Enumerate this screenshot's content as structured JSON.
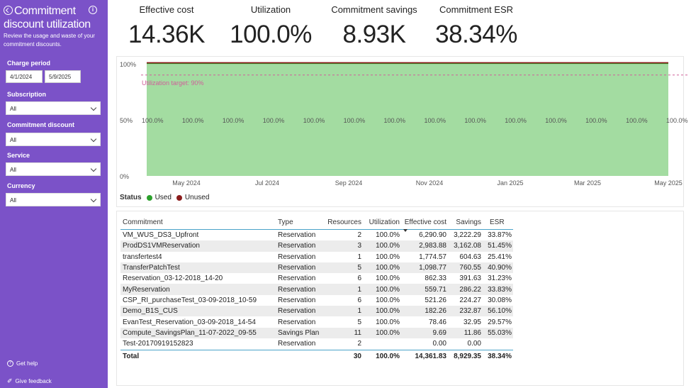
{
  "sidebar": {
    "title": "Commitment discount utilization",
    "description": "Review the usage and waste of your commitment discounts.",
    "charge_period_label": "Charge period",
    "start_date": "4/1/2024",
    "end_date": "5/9/2025",
    "filters": [
      {
        "label": "Subscription",
        "value": "All"
      },
      {
        "label": "Commitment discount",
        "value": "All"
      },
      {
        "label": "Service",
        "value": "All"
      },
      {
        "label": "Currency",
        "value": "All"
      }
    ],
    "get_help": "Get help",
    "give_feedback": "Give feedback",
    "bg_color": "#7b52c8"
  },
  "kpis": [
    {
      "label": "Effective cost",
      "value": "14.36K"
    },
    {
      "label": "Utilization",
      "value": "100.0%"
    },
    {
      "label": "Commitment savings",
      "value": "8.93K"
    },
    {
      "label": "Commitment ESR",
      "value": "38.34%"
    }
  ],
  "chart_data": {
    "type": "area",
    "x_ticks": [
      "May 2024",
      "Jul 2024",
      "Sep 2024",
      "Nov 2024",
      "Jan 2025",
      "Mar 2025",
      "May 2025"
    ],
    "y_ticks": [
      "100%",
      "50%",
      "0%"
    ],
    "ylim": [
      0,
      100
    ],
    "x_range": [
      "2024-04-01",
      "2025-05-09"
    ],
    "target": {
      "value": 90,
      "label": "Utilization target: 90%",
      "color": "#d0609a"
    },
    "point_labels": [
      "100.0%",
      "100.0%",
      "100.0%",
      "100.0%",
      "100.0%",
      "100.0%",
      "100.0%",
      "100.0%",
      "100.0%",
      "100.0%",
      "100.0%",
      "100.0%",
      "100.0%",
      "100.0%"
    ],
    "series": [
      {
        "name": "Used",
        "color": "#2ca02c",
        "fill": "#a3dca1",
        "values": [
          100,
          100,
          100,
          100,
          100,
          100,
          100,
          100,
          100,
          100,
          100,
          100,
          100,
          100
        ]
      },
      {
        "name": "Unused",
        "color": "#8b1c1c",
        "values": [
          0,
          0,
          0,
          0,
          0,
          0,
          0,
          0,
          0,
          0,
          0,
          0,
          0,
          0
        ]
      }
    ],
    "legend_title": "Status",
    "legend_position": "bottom-left"
  },
  "table": {
    "headers": [
      "Commitment",
      "Type",
      "Resources",
      "Utilization",
      "Effective cost",
      "Savings",
      "ESR"
    ],
    "rows": [
      [
        "VM_WUS_DS3_Upfront",
        "Reservation",
        "2",
        "100.0%",
        "6,290.90",
        "3,222.29",
        "33.87%"
      ],
      [
        "ProdDS1VMReservation",
        "Reservation",
        "3",
        "100.0%",
        "2,983.88",
        "3,162.08",
        "51.45%"
      ],
      [
        "transfertest4",
        "Reservation",
        "1",
        "100.0%",
        "1,774.57",
        "604.63",
        "25.41%"
      ],
      [
        "TransferPatchTest",
        "Reservation",
        "5",
        "100.0%",
        "1,098.77",
        "760.55",
        "40.90%"
      ],
      [
        "Reservation_03-12-2018_14-20",
        "Reservation",
        "6",
        "100.0%",
        "862.33",
        "391.63",
        "31.23%"
      ],
      [
        "MyReservation",
        "Reservation",
        "1",
        "100.0%",
        "559.71",
        "286.22",
        "33.83%"
      ],
      [
        "CSP_RI_purchaseTest_03-09-2018_10-59",
        "Reservation",
        "6",
        "100.0%",
        "521.26",
        "224.27",
        "30.08%"
      ],
      [
        "Demo_B1S_CUS",
        "Reservation",
        "1",
        "100.0%",
        "182.26",
        "232.87",
        "56.10%"
      ],
      [
        "EvanTest_Reservation_03-09-2018_14-54",
        "Reservation",
        "5",
        "100.0%",
        "78.46",
        "32.95",
        "29.57%"
      ],
      [
        "Compute_SavingsPlan_11-07-2022_09-55",
        "Savings Plan",
        "11",
        "100.0%",
        "9.69",
        "11.86",
        "55.03%"
      ],
      [
        "Test-20170919152823",
        "Reservation",
        "2",
        "",
        "0.00",
        "0.00",
        ""
      ]
    ],
    "total": [
      "Total",
      "",
      "30",
      "100.0%",
      "14,361.83",
      "8,929.35",
      "38.34%"
    ]
  }
}
